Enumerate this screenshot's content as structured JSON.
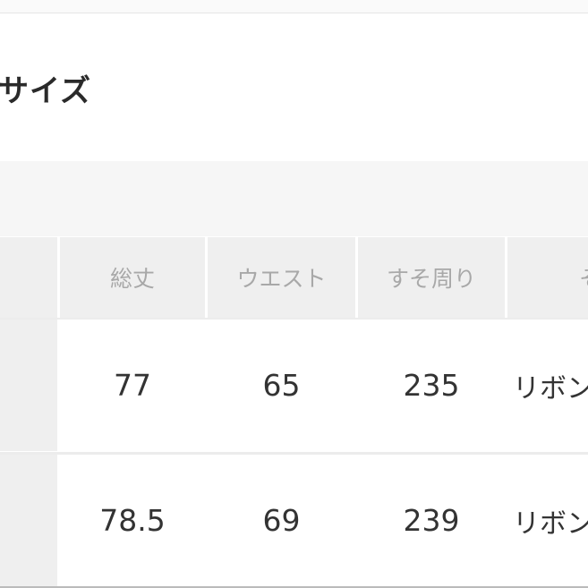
{
  "title": "サイズ",
  "table": {
    "headers": [
      "総丈",
      "ウエスト",
      "すそ周り",
      "そ"
    ],
    "rows": [
      {
        "values": [
          "77",
          "65",
          "235",
          "リボン"
        ]
      },
      {
        "values": [
          "78.5",
          "69",
          "239",
          "リボン"
        ]
      }
    ]
  }
}
